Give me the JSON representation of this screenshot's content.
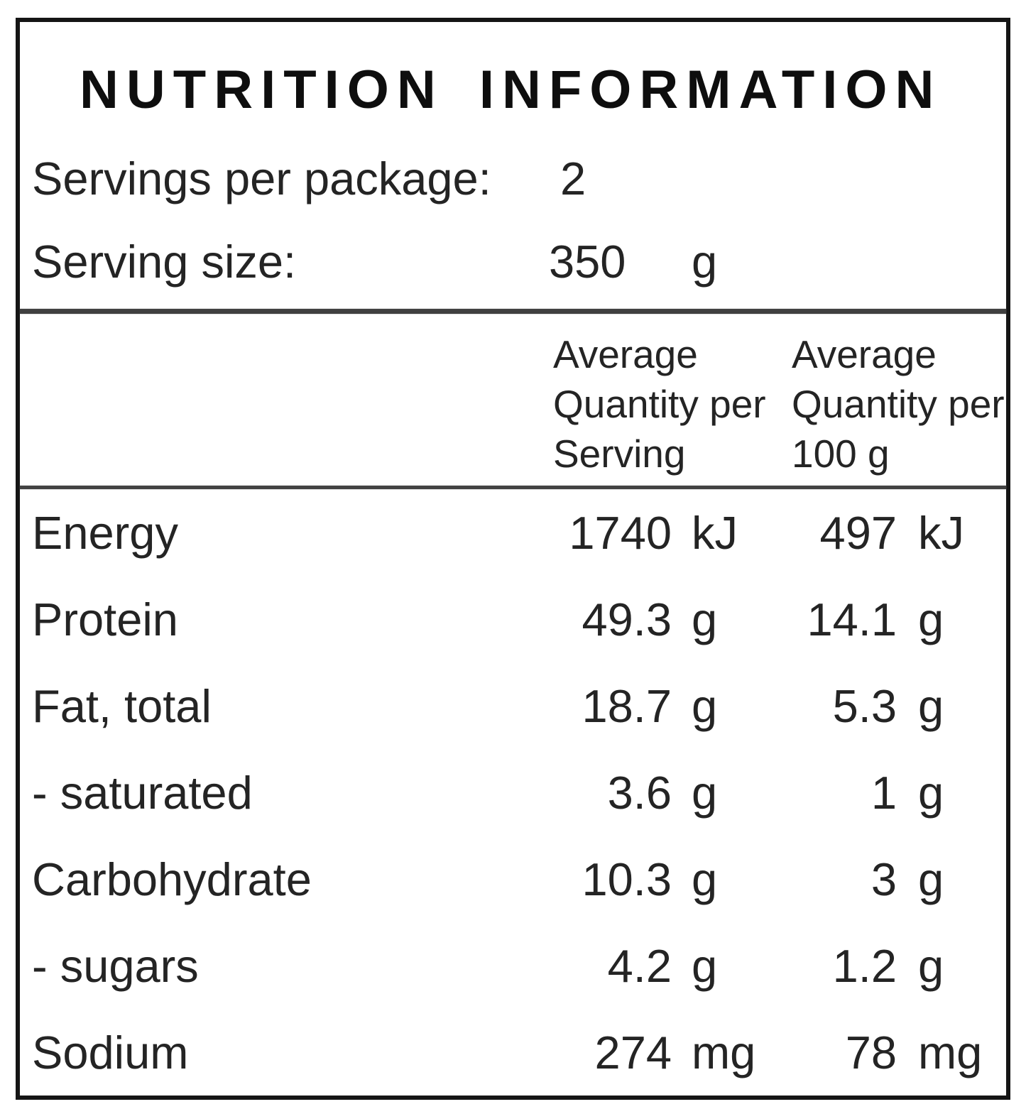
{
  "panel": {
    "title": "NUTRITION INFORMATION",
    "servings_per_package": {
      "label": "Servings per package:",
      "value": "2"
    },
    "serving_size": {
      "label": "Serving size:",
      "value": "350",
      "unit": "g"
    },
    "columns": {
      "per_serving": {
        "line1": "Average",
        "line2": "Quantity per",
        "line3": "Serving"
      },
      "per_100g": {
        "line1": "Average",
        "line2": "Quantity per",
        "line3": "100 g"
      }
    },
    "rows": [
      {
        "name": "Energy",
        "serving_value": "1740",
        "serving_unit": "kJ",
        "per100_value": "497",
        "per100_unit": "kJ"
      },
      {
        "name": "Protein",
        "serving_value": "49.3",
        "serving_unit": "g",
        "per100_value": "14.1",
        "per100_unit": "g"
      },
      {
        "name": "Fat, total",
        "serving_value": "18.7",
        "serving_unit": "g",
        "per100_value": "5.3",
        "per100_unit": "g"
      },
      {
        "name": "- saturated",
        "serving_value": "3.6",
        "serving_unit": "g",
        "per100_value": "1",
        "per100_unit": "g"
      },
      {
        "name": "Carbohydrate",
        "serving_value": "10.3",
        "serving_unit": "g",
        "per100_value": "3",
        "per100_unit": "g"
      },
      {
        "name": "- sugars",
        "serving_value": "4.2",
        "serving_unit": "g",
        "per100_value": "1.2",
        "per100_unit": "g"
      },
      {
        "name": "Sodium",
        "serving_value": "274",
        "serving_unit": "mg",
        "per100_value": "78",
        "per100_unit": "mg"
      }
    ]
  }
}
